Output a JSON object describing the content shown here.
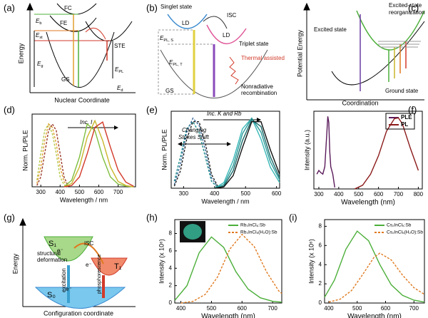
{
  "diagrams": {
    "a": {
      "label": "(a)",
      "ylabel": "Energy",
      "xlabel": "Nuclear Coordinate",
      "texts": [
        "FC",
        "FE",
        "STE",
        "GS",
        {
          "text": "E",
          "sub": "b"
        },
        {
          "text": "E",
          "sub": "st"
        },
        {
          "text": "E",
          "sub": "g"
        },
        {
          "text": "E",
          "sub": "PL"
        },
        {
          "text": "E",
          "sub": "d"
        }
      ]
    },
    "b": {
      "label": "(b)",
      "texts": [
        "Singlet state",
        "LD",
        "ISC",
        "LD",
        "Triplet state",
        "Thermal assisted",
        "GS",
        "Nonradiative",
        "recombination",
        {
          "text": "E",
          "sub": "PL, S"
        },
        {
          "text": "E",
          "sub": "PL, T"
        }
      ]
    },
    "c": {
      "label": "(c)",
      "ylabel": "Potential Energy",
      "xlabel": "Coordination",
      "texts": [
        "Excited-state",
        "reorganization",
        "Excited state",
        "Ground state"
      ]
    },
    "g": {
      "label": "(g)",
      "ylabel": "Energy",
      "xlabel": "Configuration coordinate",
      "texts": [
        "S₁",
        "T₁",
        "S₀",
        "structural",
        "deformation",
        "ISC",
        "excitation",
        "phosphorescence",
        "e⁻",
        "e⁻",
        "e⁻"
      ]
    }
  },
  "chart_data": [
    {
      "type": "line",
      "label": "(d)",
      "xlabel": "Wavelength / nm",
      "ylabel": "Norm. PL/PLE",
      "xlim": [
        255,
        790
      ],
      "ylim": [
        0,
        1.1
      ],
      "xticks": [
        300,
        400,
        500,
        600,
        700
      ],
      "annotations": [
        {
          "text": "Inc. I",
          "italic": true
        }
      ],
      "series": [
        {
          "color": "#b5c94a",
          "style": "dashed",
          "x": [
            280,
            300,
            320,
            340,
            360,
            380,
            400,
            420,
            440
          ],
          "values": [
            0.1,
            0.5,
            0.85,
            0.95,
            0.8,
            0.5,
            0.15,
            0.03,
            0
          ]
        },
        {
          "color": "#e0a030",
          "style": "dashed",
          "x": [
            280,
            300,
            320,
            340,
            360,
            380,
            400,
            420,
            440
          ],
          "values": [
            0.05,
            0.3,
            0.7,
            0.95,
            0.9,
            0.65,
            0.3,
            0.08,
            0.01
          ]
        },
        {
          "color": "#9b3a2a",
          "style": "dashed",
          "x": [
            280,
            300,
            320,
            340,
            360,
            380,
            400,
            420,
            440
          ],
          "values": [
            0.02,
            0.15,
            0.5,
            0.85,
            0.95,
            0.85,
            0.5,
            0.15,
            0.02
          ]
        },
        {
          "color": "#7fbf3f",
          "style": "solid",
          "x": [
            420,
            460,
            500,
            540,
            580,
            620,
            660,
            700,
            740,
            780
          ],
          "values": [
            0,
            0.1,
            0.45,
            0.95,
            0.85,
            0.45,
            0.15,
            0.04,
            0.01,
            0
          ]
        },
        {
          "color": "#c9b52a",
          "style": "solid",
          "x": [
            420,
            460,
            500,
            540,
            580,
            620,
            660,
            700,
            740,
            780
          ],
          "values": [
            0,
            0.05,
            0.3,
            0.75,
            1,
            0.7,
            0.3,
            0.08,
            0.02,
            0
          ]
        },
        {
          "color": "#d23a2a",
          "style": "solid",
          "x": [
            420,
            460,
            500,
            540,
            580,
            620,
            660,
            700,
            740,
            780
          ],
          "values": [
            0,
            0.02,
            0.15,
            0.5,
            0.9,
            0.98,
            0.6,
            0.25,
            0.07,
            0.01
          ]
        }
      ]
    },
    {
      "type": "line",
      "label": "(e)",
      "xlabel": "Wavelength / nm",
      "ylabel": "Norm. PL/PLE",
      "xlim": [
        260,
        610
      ],
      "ylim": [
        0,
        1.1
      ],
      "xticks": [
        300,
        400,
        500,
        600
      ],
      "annotations": [
        {
          "text": "Inc. K and Rb",
          "italic": true
        },
        {
          "text": "Changing",
          "italic": true
        },
        {
          "text": "Stokes Shift",
          "italic": true
        }
      ],
      "series": [
        {
          "color": "#1a8a8a",
          "style": "dashed",
          "x": [
            270,
            290,
            310,
            330,
            350,
            370,
            390,
            410
          ],
          "values": [
            0.1,
            0.45,
            0.85,
            0.95,
            0.8,
            0.45,
            0.1,
            0.01
          ]
        },
        {
          "color": "#3a6a9a",
          "style": "dashed",
          "x": [
            270,
            290,
            310,
            330,
            350,
            370,
            390,
            410
          ],
          "values": [
            0.05,
            0.35,
            0.8,
            1.0,
            0.9,
            0.55,
            0.15,
            0.02
          ]
        },
        {
          "color": "#222222",
          "style": "dashed",
          "x": [
            270,
            290,
            310,
            330,
            350,
            370,
            390,
            410
          ],
          "values": [
            0.03,
            0.25,
            0.7,
            0.95,
            0.95,
            0.65,
            0.2,
            0.03
          ]
        },
        {
          "color": "#3ab8b8",
          "style": "solid",
          "x": [
            400,
            430,
            460,
            490,
            520,
            550,
            580,
            610
          ],
          "values": [
            0,
            0.08,
            0.4,
            0.85,
            1.0,
            0.7,
            0.3,
            0.08
          ]
        },
        {
          "color": "#2a9a9a",
          "style": "solid",
          "x": [
            400,
            430,
            460,
            490,
            520,
            550,
            580,
            610
          ],
          "values": [
            0,
            0.05,
            0.32,
            0.78,
            1.0,
            0.8,
            0.38,
            0.12
          ]
        },
        {
          "color": "#1a6a6a",
          "style": "solid",
          "x": [
            400,
            430,
            460,
            490,
            520,
            550,
            580,
            610
          ],
          "values": [
            0,
            0.03,
            0.25,
            0.68,
            0.98,
            0.88,
            0.45,
            0.15
          ]
        },
        {
          "color": "#111111",
          "style": "solid",
          "x": [
            400,
            430,
            460,
            490,
            520,
            550,
            580,
            610
          ],
          "values": [
            0,
            0.02,
            0.18,
            0.58,
            0.95,
            0.95,
            0.55,
            0.2
          ]
        }
      ]
    },
    {
      "type": "line",
      "label": "(f)",
      "xlabel": "Wavelength (nm)",
      "ylabel": "Intensity (a.u.)",
      "xlim": [
        275,
        820
      ],
      "ylim": [
        0,
        1.05
      ],
      "xticks": [
        300,
        400,
        500,
        600,
        700,
        800
      ],
      "series": [
        {
          "name": "PLE",
          "color": "#5a1a5a",
          "style": "solid",
          "x": [
            290,
            300,
            310,
            320,
            330,
            340,
            345,
            350,
            355,
            360,
            370,
            380
          ],
          "values": [
            0.2,
            0.25,
            0.22,
            0.2,
            0.3,
            0.75,
            0.98,
            0.9,
            0.5,
            0.3,
            0.2,
            0.02
          ]
        },
        {
          "name": "PL",
          "color": "#8b1a1a",
          "style": "solid",
          "x": [
            480,
            520,
            560,
            600,
            640,
            680,
            700,
            720,
            760,
            800
          ],
          "values": [
            0,
            0.05,
            0.2,
            0.45,
            0.78,
            0.95,
            0.96,
            0.88,
            0.55,
            0.25
          ]
        }
      ]
    },
    {
      "type": "line",
      "label": "(h)",
      "xlabel": "Wavelength (nm)",
      "ylabel": "Intensity (x 10⁶)",
      "xlim": [
        380,
        730
      ],
      "ylim": [
        0,
        9.6
      ],
      "xticks": [
        400,
        500,
        600,
        700
      ],
      "yticks": [
        0,
        2,
        4,
        6,
        8
      ],
      "series": [
        {
          "name": "Rb₃InCl₆:Sb",
          "color": "#4caf3a",
          "style": "solid",
          "x": [
            380,
            420,
            460,
            500,
            540,
            580,
            620,
            660,
            700,
            730
          ],
          "values": [
            0.3,
            2,
            5.8,
            7.6,
            6.4,
            3.6,
            1.6,
            0.6,
            0.2,
            0.1
          ]
        },
        {
          "name": "Rb₃InCl₅(H₂O):Sb",
          "color": "#e07a20",
          "style": "dashed",
          "x": [
            400,
            440,
            480,
            520,
            560,
            600,
            640,
            680,
            720,
            730
          ],
          "values": [
            0,
            0.2,
            1,
            3,
            6.2,
            7.9,
            6.5,
            3.6,
            1.4,
            1.1
          ]
        }
      ]
    },
    {
      "type": "line",
      "label": "(i)",
      "xlabel": "Wavelength (nm)",
      "ylabel": "Intensity (x 10⁶)",
      "xlim": [
        385,
        737
      ],
      "ylim": [
        0,
        8.7
      ],
      "xticks": [
        400,
        500,
        600,
        700
      ],
      "yticks": [
        0,
        2,
        4,
        6,
        8
      ],
      "series": [
        {
          "name": "Cs₂InCl₅:Sb",
          "color": "#4caf3a",
          "style": "solid",
          "x": [
            385,
            420,
            460,
            500,
            540,
            580,
            620,
            660,
            700,
            737
          ],
          "values": [
            0.6,
            2.4,
            5.6,
            7.5,
            6.5,
            4,
            1.9,
            0.8,
            0.3,
            0.1
          ]
        },
        {
          "name": "Cs₂InCl₅(H₂O):Sb",
          "color": "#e07a20",
          "style": "dashed",
          "x": [
            400,
            440,
            480,
            520,
            560,
            580,
            620,
            660,
            700,
            737
          ],
          "values": [
            0.1,
            0.4,
            1.3,
            3,
            4.8,
            5.2,
            4.5,
            2.9,
            1.6,
            0.9
          ]
        }
      ]
    }
  ]
}
